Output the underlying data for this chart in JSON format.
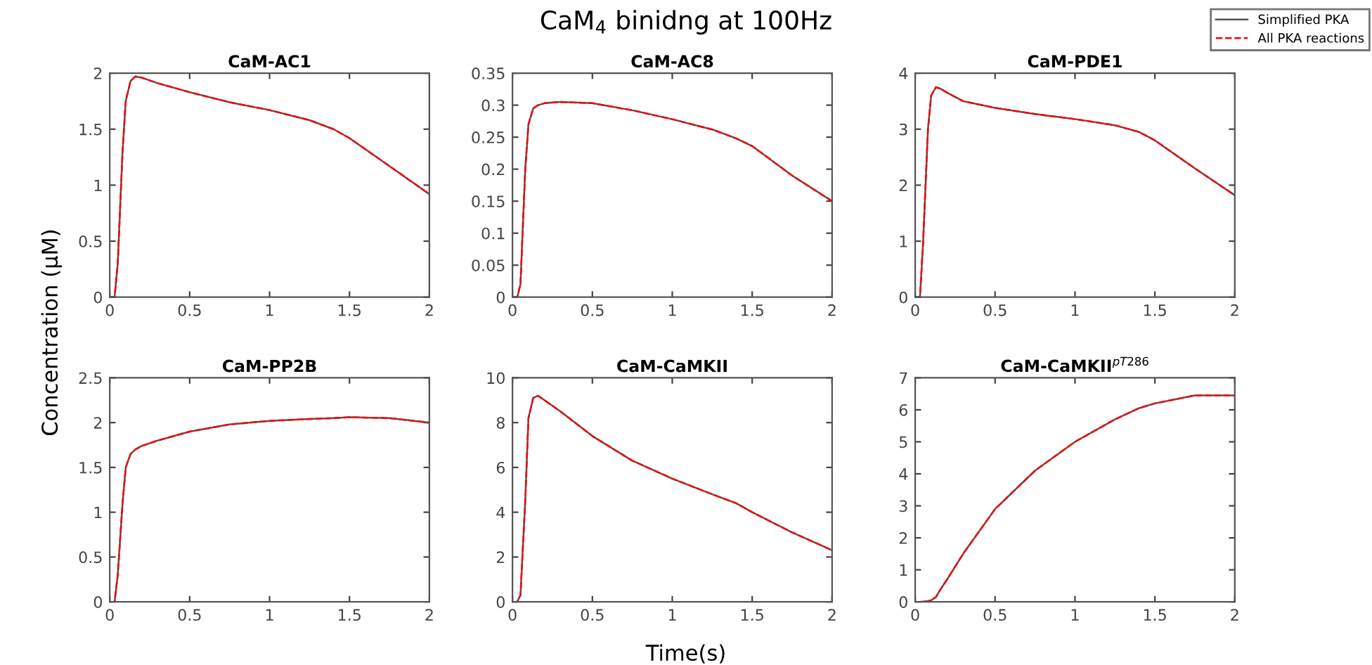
{
  "chart_data": [
    {
      "type": "line",
      "title": "CaM-AC1",
      "ylabel": "Concentration (µM)",
      "x": [
        0,
        0.03,
        0.05,
        0.08,
        0.1,
        0.13,
        0.16,
        0.2,
        0.3,
        0.5,
        0.75,
        1.0,
        1.25,
        1.4,
        1.5,
        1.75,
        2.0
      ],
      "xlim": [
        0,
        2
      ],
      "xticks": [
        0,
        0.5,
        1,
        1.5,
        2
      ],
      "ylim": [
        0,
        2
      ],
      "yticks": [
        0,
        0.5,
        1,
        1.5,
        2
      ],
      "grid": false,
      "legend": false,
      "marker": "none",
      "series": [
        {
          "color": "#555555",
          "line_style": "solid",
          "values": [
            0,
            0,
            0.3,
            1.3,
            1.75,
            1.93,
            1.97,
            1.96,
            1.91,
            1.83,
            1.74,
            1.67,
            1.58,
            1.5,
            1.42,
            1.17,
            0.92
          ]
        },
        {
          "color": "#ff0000",
          "line_style": "dashed",
          "values": [
            0,
            0,
            0.3,
            1.3,
            1.75,
            1.93,
            1.97,
            1.96,
            1.91,
            1.83,
            1.74,
            1.67,
            1.58,
            1.5,
            1.42,
            1.17,
            0.92
          ]
        }
      ]
    },
    {
      "type": "line",
      "title": "CaM-AC8",
      "annotations": [
        "CaM$_{4}$ binidng at 100Hz"
      ],
      "x": [
        0,
        0.03,
        0.05,
        0.08,
        0.1,
        0.13,
        0.16,
        0.2,
        0.3,
        0.5,
        0.75,
        1.0,
        1.25,
        1.4,
        1.5,
        1.75,
        2.0
      ],
      "xlim": [
        0,
        2
      ],
      "xticks": [
        0,
        0.5,
        1,
        1.5,
        2
      ],
      "ylim": [
        0,
        0.35
      ],
      "yticks": [
        0,
        0.05,
        0.1,
        0.15,
        0.2,
        0.25,
        0.3,
        0.35
      ],
      "grid": false,
      "legend": false,
      "marker": "none",
      "series": [
        {
          "color": "#555555",
          "line_style": "solid",
          "values": [
            0,
            0,
            0.02,
            0.2,
            0.27,
            0.295,
            0.3,
            0.303,
            0.305,
            0.303,
            0.292,
            0.278,
            0.262,
            0.248,
            0.236,
            0.19,
            0.15
          ]
        },
        {
          "color": "#ff0000",
          "line_style": "dashed",
          "values": [
            0,
            0,
            0.02,
            0.2,
            0.27,
            0.295,
            0.3,
            0.303,
            0.305,
            0.303,
            0.292,
            0.278,
            0.262,
            0.248,
            0.236,
            0.19,
            0.15
          ]
        }
      ]
    },
    {
      "type": "line",
      "title": "CaM-PDE1",
      "x": [
        0,
        0.03,
        0.05,
        0.08,
        0.1,
        0.13,
        0.16,
        0.2,
        0.3,
        0.5,
        0.75,
        1.0,
        1.25,
        1.4,
        1.5,
        1.75,
        2.0
      ],
      "xlim": [
        0,
        2
      ],
      "xticks": [
        0,
        0.5,
        1,
        1.5,
        2
      ],
      "ylim": [
        0,
        4
      ],
      "yticks": [
        0,
        1,
        2,
        3,
        4
      ],
      "grid": false,
      "legend": "top right",
      "marker": "none",
      "series": [
        {
          "name": "Simplified PKA",
          "color": "#555555",
          "line_style": "solid",
          "values": [
            0,
            0,
            1.0,
            3.0,
            3.6,
            3.75,
            3.72,
            3.65,
            3.5,
            3.38,
            3.27,
            3.18,
            3.07,
            2.95,
            2.8,
            2.3,
            1.82
          ]
        },
        {
          "name": "All PKA reactions",
          "color": "#ff0000",
          "line_style": "dashed",
          "values": [
            0,
            0,
            1.0,
            3.0,
            3.6,
            3.75,
            3.72,
            3.65,
            3.5,
            3.38,
            3.27,
            3.18,
            3.07,
            2.95,
            2.8,
            2.3,
            1.82
          ]
        }
      ]
    },
    {
      "type": "line",
      "title": "CaM-PP2B",
      "x": [
        0,
        0.03,
        0.05,
        0.08,
        0.1,
        0.13,
        0.16,
        0.2,
        0.3,
        0.5,
        0.75,
        1.0,
        1.25,
        1.4,
        1.5,
        1.75,
        2.0
      ],
      "xlim": [
        0,
        2
      ],
      "xticks": [
        0,
        0.5,
        1,
        1.5,
        2
      ],
      "ylim": [
        0,
        2.5
      ],
      "yticks": [
        0,
        0.5,
        1,
        1.5,
        2,
        2.5
      ],
      "grid": false,
      "legend": false,
      "marker": "none",
      "series": [
        {
          "color": "#555555",
          "line_style": "solid",
          "values": [
            0,
            0,
            0.3,
            1.1,
            1.5,
            1.65,
            1.7,
            1.74,
            1.8,
            1.9,
            1.98,
            2.02,
            2.04,
            2.05,
            2.06,
            2.05,
            2.0
          ]
        },
        {
          "color": "#ff0000",
          "line_style": "dashed",
          "values": [
            0,
            0,
            0.3,
            1.1,
            1.5,
            1.65,
            1.7,
            1.74,
            1.8,
            1.9,
            1.98,
            2.02,
            2.04,
            2.05,
            2.06,
            2.05,
            2.0
          ]
        }
      ]
    },
    {
      "type": "line",
      "title": "CaM-CaMKII",
      "xlabel": "Time(s)",
      "x": [
        0,
        0.03,
        0.05,
        0.08,
        0.1,
        0.13,
        0.16,
        0.2,
        0.3,
        0.5,
        0.75,
        1.0,
        1.25,
        1.4,
        1.5,
        1.75,
        2.0
      ],
      "xlim": [
        0,
        2
      ],
      "xticks": [
        0,
        0.5,
        1,
        1.5,
        2
      ],
      "ylim": [
        0,
        10
      ],
      "yticks": [
        0,
        2,
        4,
        6,
        8,
        10
      ],
      "grid": false,
      "legend": false,
      "marker": "none",
      "series": [
        {
          "color": "#555555",
          "line_style": "solid",
          "values": [
            0,
            0,
            0.3,
            4.5,
            8.2,
            9.1,
            9.2,
            9.0,
            8.5,
            7.4,
            6.3,
            5.5,
            4.8,
            4.4,
            4.0,
            3.1,
            2.3
          ]
        },
        {
          "color": "#ff0000",
          "line_style": "dashed",
          "values": [
            0,
            0,
            0.3,
            4.5,
            8.2,
            9.1,
            9.2,
            9.0,
            8.5,
            7.4,
            6.3,
            5.5,
            4.8,
            4.4,
            4.0,
            3.1,
            2.3
          ]
        }
      ]
    },
    {
      "type": "line",
      "title": "CaM-CaMKII$^{pT286}$",
      "x": [
        0,
        0.03,
        0.05,
        0.08,
        0.1,
        0.13,
        0.16,
        0.2,
        0.3,
        0.5,
        0.75,
        1.0,
        1.25,
        1.4,
        1.5,
        1.75,
        2.0
      ],
      "xlim": [
        0,
        2
      ],
      "xticks": [
        0,
        0.5,
        1,
        1.5,
        2
      ],
      "ylim": [
        0,
        7
      ],
      "yticks": [
        0,
        1,
        2,
        3,
        4,
        5,
        6,
        7
      ],
      "grid": false,
      "legend": false,
      "marker": "none",
      "series": [
        {
          "color": "#555555",
          "line_style": "solid",
          "values": [
            0,
            0,
            0.01,
            0.02,
            0.05,
            0.15,
            0.4,
            0.7,
            1.5,
            2.9,
            4.1,
            5.0,
            5.7,
            6.05,
            6.2,
            6.45,
            6.45
          ]
        },
        {
          "color": "#ff0000",
          "line_style": "dashed",
          "values": [
            0,
            0,
            0.01,
            0.02,
            0.05,
            0.15,
            0.4,
            0.7,
            1.5,
            2.9,
            4.1,
            5.0,
            5.7,
            6.05,
            6.2,
            6.45,
            6.45
          ]
        }
      ]
    }
  ]
}
